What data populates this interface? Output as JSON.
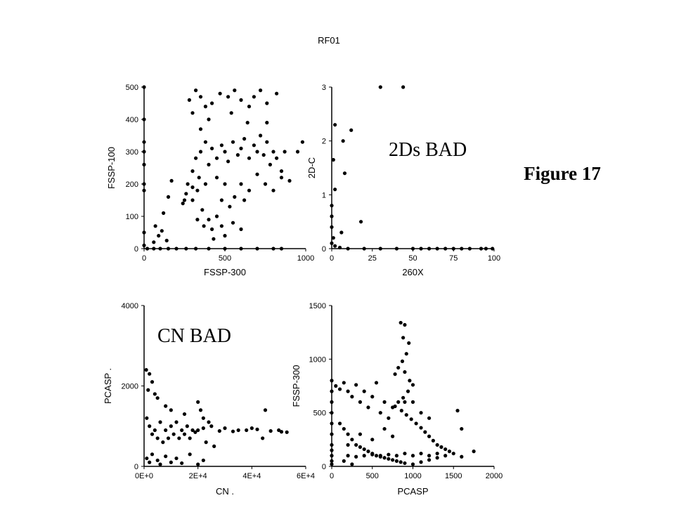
{
  "title": "RF01",
  "figure_label": "Figure 17",
  "colors": {
    "marker": "#000000",
    "axis": "#000000",
    "background": "#ffffff"
  },
  "chart_data": [
    {
      "id": "p1",
      "type": "scatter",
      "xlabel": "FSSP-300",
      "ylabel": "FSSP-100",
      "xlim": [
        0,
        1000
      ],
      "ylim": [
        0,
        500
      ],
      "xticks": [
        0,
        500,
        1000
      ],
      "xtick_labels": [
        "0",
        "500",
        "1000"
      ],
      "yticks": [
        0,
        100,
        200,
        300,
        400,
        500
      ],
      "ytick_labels": [
        "0",
        "100",
        "200",
        "300",
        "400",
        "500"
      ],
      "annotation": "",
      "grid": false,
      "points": [
        [
          0,
          500
        ],
        [
          0,
          400
        ],
        [
          0,
          330
        ],
        [
          0,
          300
        ],
        [
          0,
          260
        ],
        [
          0,
          200
        ],
        [
          0,
          180
        ],
        [
          0,
          50
        ],
        [
          0,
          10
        ],
        [
          20,
          0
        ],
        [
          60,
          0
        ],
        [
          100,
          0
        ],
        [
          150,
          0
        ],
        [
          200,
          0
        ],
        [
          260,
          0
        ],
        [
          320,
          0
        ],
        [
          400,
          0
        ],
        [
          500,
          0
        ],
        [
          600,
          0
        ],
        [
          700,
          0
        ],
        [
          800,
          0
        ],
        [
          850,
          0
        ],
        [
          70,
          70
        ],
        [
          90,
          40
        ],
        [
          110,
          55
        ],
        [
          120,
          110
        ],
        [
          150,
          160
        ],
        [
          170,
          210
        ],
        [
          140,
          25
        ],
        [
          60,
          20
        ],
        [
          250,
          150
        ],
        [
          270,
          200
        ],
        [
          300,
          240
        ],
        [
          320,
          280
        ],
        [
          350,
          300
        ],
        [
          380,
          330
        ],
        [
          400,
          260
        ],
        [
          420,
          310
        ],
        [
          450,
          280
        ],
        [
          480,
          320
        ],
        [
          500,
          300
        ],
        [
          520,
          270
        ],
        [
          550,
          330
        ],
        [
          580,
          290
        ],
        [
          600,
          310
        ],
        [
          620,
          340
        ],
        [
          650,
          280
        ],
        [
          680,
          320
        ],
        [
          700,
          300
        ],
        [
          720,
          350
        ],
        [
          740,
          290
        ],
        [
          760,
          330
        ],
        [
          780,
          260
        ],
        [
          800,
          300
        ],
        [
          820,
          280
        ],
        [
          850,
          240
        ],
        [
          870,
          300
        ],
        [
          900,
          210
        ],
        [
          950,
          300
        ],
        [
          980,
          330
        ],
        [
          300,
          150
        ],
        [
          330,
          180
        ],
        [
          360,
          120
        ],
        [
          400,
          90
        ],
        [
          420,
          60
        ],
        [
          450,
          100
        ],
        [
          480,
          70
        ],
        [
          500,
          40
        ],
        [
          550,
          80
        ],
        [
          600,
          60
        ],
        [
          280,
          460
        ],
        [
          320,
          490
        ],
        [
          350,
          470
        ],
        [
          380,
          440
        ],
        [
          420,
          450
        ],
        [
          470,
          480
        ],
        [
          520,
          470
        ],
        [
          560,
          490
        ],
        [
          600,
          460
        ],
        [
          650,
          440
        ],
        [
          680,
          470
        ],
        [
          720,
          490
        ],
        [
          760,
          450
        ],
        [
          820,
          480
        ],
        [
          760,
          390
        ],
        [
          640,
          390
        ],
        [
          540,
          420
        ],
        [
          400,
          400
        ],
        [
          350,
          370
        ],
        [
          300,
          420
        ],
        [
          600,
          200
        ],
        [
          650,
          180
        ],
        [
          700,
          230
        ],
        [
          750,
          200
        ],
        [
          800,
          180
        ],
        [
          850,
          220
        ],
        [
          620,
          150
        ],
        [
          560,
          160
        ],
        [
          500,
          200
        ],
        [
          450,
          220
        ],
        [
          380,
          200
        ],
        [
          340,
          220
        ],
        [
          300,
          190
        ],
        [
          260,
          170
        ],
        [
          240,
          140
        ],
        [
          330,
          90
        ],
        [
          370,
          70
        ],
        [
          430,
          30
        ],
        [
          480,
          150
        ],
        [
          530,
          130
        ]
      ]
    },
    {
      "id": "p2",
      "type": "scatter",
      "xlabel": "260X",
      "ylabel": "2D-C",
      "xlim": [
        0,
        100
      ],
      "ylim": [
        0,
        3
      ],
      "xticks": [
        0,
        25,
        50,
        75,
        100
      ],
      "xtick_labels": [
        "0",
        "25",
        "50",
        "75",
        "100"
      ],
      "yticks": [
        0,
        1,
        2,
        3
      ],
      "ytick_labels": [
        "0",
        "1",
        "2",
        "3"
      ],
      "annotation": "2Ds BAD",
      "grid": false,
      "points": [
        [
          30,
          3
        ],
        [
          44,
          3
        ],
        [
          2,
          2.3
        ],
        [
          7,
          2.0
        ],
        [
          12,
          2.2
        ],
        [
          1,
          1.65
        ],
        [
          8,
          1.4
        ],
        [
          2,
          1.1
        ],
        [
          0,
          0.8
        ],
        [
          0,
          0.6
        ],
        [
          0,
          0.4
        ],
        [
          6,
          0.3
        ],
        [
          18,
          0.5
        ],
        [
          1,
          0.2
        ],
        [
          0,
          0.1
        ],
        [
          2,
          0.05
        ],
        [
          5,
          0.02
        ],
        [
          10,
          0
        ],
        [
          20,
          0
        ],
        [
          30,
          0
        ],
        [
          40,
          0
        ],
        [
          50,
          0
        ],
        [
          55,
          0
        ],
        [
          60,
          0
        ],
        [
          65,
          0
        ],
        [
          70,
          0
        ],
        [
          75,
          0
        ],
        [
          80,
          0
        ],
        [
          85,
          0
        ],
        [
          92,
          0
        ],
        [
          95,
          0
        ],
        [
          99,
          0
        ]
      ]
    },
    {
      "id": "p3",
      "type": "scatter",
      "xlabel": "CN .",
      "ylabel": "PCASP .",
      "xlim": [
        0,
        60000
      ],
      "ylim": [
        0,
        4000
      ],
      "xticks": [
        0,
        20000,
        40000,
        60000
      ],
      "xtick_labels": [
        "0E+0",
        "2E+4",
        "4E+4",
        "6E+4"
      ],
      "yticks": [
        0,
        2000,
        4000
      ],
      "ytick_labels": [
        "0",
        "2000",
        "4000"
      ],
      "annotation": "CN BAD",
      "grid": false,
      "points": [
        [
          800,
          2400
        ],
        [
          2000,
          2300
        ],
        [
          3000,
          2100
        ],
        [
          1500,
          1900
        ],
        [
          4000,
          1800
        ],
        [
          5000,
          1700
        ],
        [
          8000,
          1500
        ],
        [
          10000,
          1400
        ],
        [
          15000,
          1300
        ],
        [
          20000,
          1600
        ],
        [
          21000,
          1400
        ],
        [
          22000,
          1200
        ],
        [
          24000,
          1100
        ],
        [
          25000,
          1000
        ],
        [
          30000,
          950
        ],
        [
          35000,
          900
        ],
        [
          40000,
          950
        ],
        [
          45000,
          1400
        ],
        [
          50000,
          900
        ],
        [
          53000,
          850
        ],
        [
          1000,
          200
        ],
        [
          2000,
          100
        ],
        [
          3000,
          300
        ],
        [
          5000,
          150
        ],
        [
          6000,
          50
        ],
        [
          8000,
          250
        ],
        [
          10000,
          100
        ],
        [
          12000,
          200
        ],
        [
          14000,
          80
        ],
        [
          17000,
          300
        ],
        [
          20000,
          50
        ],
        [
          22000,
          150
        ],
        [
          23000,
          600
        ],
        [
          26000,
          500
        ],
        [
          1000,
          1200
        ],
        [
          2000,
          1000
        ],
        [
          3000,
          800
        ],
        [
          4000,
          900
        ],
        [
          5000,
          700
        ],
        [
          6000,
          1100
        ],
        [
          7000,
          600
        ],
        [
          8000,
          900
        ],
        [
          9000,
          700
        ],
        [
          10000,
          1000
        ],
        [
          11000,
          800
        ],
        [
          12000,
          1100
        ],
        [
          13000,
          700
        ],
        [
          14000,
          900
        ],
        [
          15000,
          800
        ],
        [
          16000,
          1000
        ],
        [
          17000,
          700
        ],
        [
          18000,
          900
        ],
        [
          19000,
          850
        ],
        [
          20000,
          900
        ],
        [
          22000,
          950
        ],
        [
          28000,
          880
        ],
        [
          33000,
          870
        ],
        [
          38000,
          900
        ],
        [
          42000,
          920
        ],
        [
          47000,
          880
        ],
        [
          51000,
          860
        ],
        [
          44000,
          700
        ]
      ]
    },
    {
      "id": "p4",
      "type": "scatter",
      "xlabel": "PCASP",
      "ylabel": "FSSP-300",
      "xlim": [
        0,
        2000
      ],
      "ylim": [
        0,
        1500
      ],
      "xticks": [
        0,
        500,
        1000,
        1500,
        2000
      ],
      "xtick_labels": [
        "0",
        "500",
        "1000",
        "1500",
        "2000"
      ],
      "yticks": [
        0,
        500,
        1000,
        1500
      ],
      "ytick_labels": [
        "0",
        "500",
        "1000",
        "1500"
      ],
      "annotation": "",
      "grid": false,
      "points": [
        [
          850,
          1340
        ],
        [
          900,
          1320
        ],
        [
          880,
          1200
        ],
        [
          950,
          1150
        ],
        [
          920,
          1050
        ],
        [
          870,
          980
        ],
        [
          820,
          920
        ],
        [
          780,
          860
        ],
        [
          900,
          880
        ],
        [
          960,
          800
        ],
        [
          1000,
          760
        ],
        [
          940,
          700
        ],
        [
          880,
          640
        ],
        [
          820,
          600
        ],
        [
          780,
          560
        ],
        [
          860,
          520
        ],
        [
          920,
          480
        ],
        [
          980,
          440
        ],
        [
          1040,
          400
        ],
        [
          1100,
          360
        ],
        [
          1150,
          320
        ],
        [
          1200,
          280
        ],
        [
          1250,
          240
        ],
        [
          1300,
          200
        ],
        [
          1350,
          180
        ],
        [
          1400,
          160
        ],
        [
          1450,
          140
        ],
        [
          1500,
          120
        ],
        [
          1600,
          90
        ],
        [
          1750,
          140
        ],
        [
          1550,
          520
        ],
        [
          1600,
          350
        ],
        [
          50,
          750
        ],
        [
          100,
          720
        ],
        [
          150,
          780
        ],
        [
          200,
          700
        ],
        [
          250,
          650
        ],
        [
          300,
          760
        ],
        [
          350,
          600
        ],
        [
          400,
          700
        ],
        [
          450,
          550
        ],
        [
          500,
          650
        ],
        [
          550,
          780
        ],
        [
          600,
          500
        ],
        [
          650,
          600
        ],
        [
          700,
          450
        ],
        [
          750,
          550
        ],
        [
          0,
          800
        ],
        [
          0,
          700
        ],
        [
          0,
          600
        ],
        [
          0,
          500
        ],
        [
          0,
          400
        ],
        [
          0,
          300
        ],
        [
          0,
          200
        ],
        [
          0,
          150
        ],
        [
          0,
          100
        ],
        [
          0,
          50
        ],
        [
          0,
          20
        ],
        [
          100,
          400
        ],
        [
          150,
          350
        ],
        [
          200,
          300
        ],
        [
          250,
          250
        ],
        [
          300,
          200
        ],
        [
          350,
          180
        ],
        [
          400,
          160
        ],
        [
          450,
          140
        ],
        [
          500,
          120
        ],
        [
          550,
          100
        ],
        [
          600,
          90
        ],
        [
          650,
          80
        ],
        [
          700,
          70
        ],
        [
          750,
          60
        ],
        [
          800,
          50
        ],
        [
          850,
          40
        ],
        [
          900,
          30
        ],
        [
          1000,
          20
        ],
        [
          1100,
          40
        ],
        [
          1200,
          60
        ],
        [
          1300,
          80
        ],
        [
          200,
          100
        ],
        [
          300,
          90
        ],
        [
          400,
          100
        ],
        [
          500,
          110
        ],
        [
          600,
          100
        ],
        [
          700,
          110
        ],
        [
          800,
          100
        ],
        [
          900,
          120
        ],
        [
          1000,
          100
        ],
        [
          1100,
          120
        ],
        [
          1200,
          100
        ],
        [
          1300,
          120
        ],
        [
          1400,
          100
        ],
        [
          200,
          200
        ],
        [
          350,
          300
        ],
        [
          500,
          250
        ],
        [
          650,
          350
        ],
        [
          750,
          280
        ],
        [
          150,
          50
        ],
        [
          250,
          20
        ],
        [
          900,
          600
        ],
        [
          1000,
          600
        ],
        [
          1100,
          500
        ],
        [
          1200,
          450
        ]
      ]
    }
  ]
}
